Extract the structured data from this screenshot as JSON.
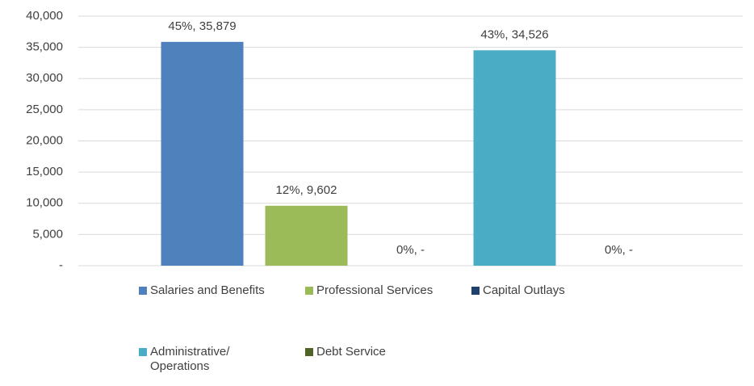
{
  "chart_data": {
    "type": "bar",
    "categories": [
      null
    ],
    "series": [
      {
        "name": "Salaries and Benefits",
        "color": "#4f81bd",
        "values": [
          35879
        ],
        "value_labels": [
          "45%, 35,879"
        ]
      },
      {
        "name": "Professional Services",
        "color": "#9bbb59",
        "values": [
          9602
        ],
        "value_labels": [
          "12%, 9,602"
        ]
      },
      {
        "name": "Capital Outlays",
        "color": "#1f3f6e",
        "values": [
          0
        ],
        "value_labels": [
          "0%,  -"
        ]
      },
      {
        "name": "Administrative/ Operations",
        "color": "#4bacc6",
        "values": [
          34526
        ],
        "value_labels": [
          "43%, 34,526"
        ]
      },
      {
        "name": "Debt Service",
        "color": "#4f6228",
        "values": [
          0
        ],
        "value_labels": [
          "0%,  -"
        ]
      }
    ],
    "ylim": [
      0,
      40000
    ],
    "yticks": [
      {
        "value": 0,
        "label": "-"
      },
      {
        "value": 5000,
        "label": "5,000"
      },
      {
        "value": 10000,
        "label": "10,000"
      },
      {
        "value": 15000,
        "label": "15,000"
      },
      {
        "value": 20000,
        "label": "20,000"
      },
      {
        "value": 25000,
        "label": "25,000"
      },
      {
        "value": 30000,
        "label": "30,000"
      },
      {
        "value": 35000,
        "label": "35,000"
      },
      {
        "value": 40000,
        "label": "40,000"
      }
    ],
    "grid": true
  }
}
